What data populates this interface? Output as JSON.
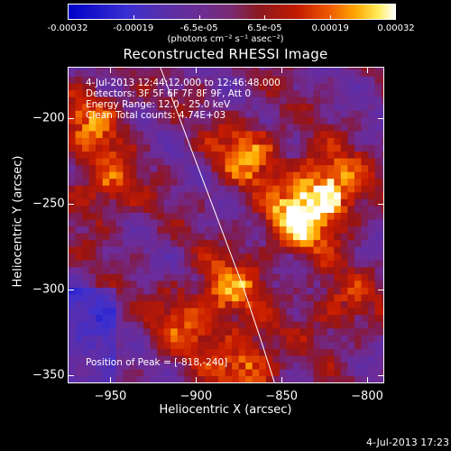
{
  "title": "Reconstructed RHESSI Image",
  "colorbar": {
    "ticks": [
      "-0.00032",
      "-0.00019",
      "-6.5e-05",
      "6.5e-05",
      "0.00019",
      "0.00032"
    ],
    "units": "(photons cm⁻² s⁻¹ asec⁻²)",
    "range": [
      -0.00032,
      0.00032
    ]
  },
  "annotations": {
    "time": "4-Jul-2013 12:44:12.000 to 12:46:48.000",
    "detectors": "Detectors: 3F 5F 6F 7F 8F 9F, Att 0",
    "energy": "Energy Range: 12.0 - 25.0 keV",
    "clean": "Clean     Total counts: 4.74E+03",
    "peak": "Position of Peak = [-818,-240]"
  },
  "footer": {
    "timestamp": "4-Jul-2013 17:23"
  },
  "chart_data": {
    "type": "heatmap",
    "title": "Reconstructed RHESSI Image",
    "xlabel": "Heliocentric X (arcsec)",
    "ylabel": "Heliocentric Y (arcsec)",
    "xlim": [
      -975,
      -790
    ],
    "ylim": [
      -355,
      -170
    ],
    "xticks": [
      -950,
      -900,
      -850,
      -800
    ],
    "yticks": [
      -200,
      -250,
      -300,
      -350
    ],
    "xtick_labels": [
      "−950",
      "−900",
      "−850",
      "−800"
    ],
    "ytick_labels": [
      "−200",
      "−250",
      "−300",
      "−350"
    ],
    "colormap": "blue-purple-red-yellow-white",
    "peak": [
      -818,
      -240
    ],
    "limb_line": [
      [
        -921,
        -170
      ],
      [
        -887,
        -260
      ],
      [
        -872,
        -300
      ],
      [
        -862,
        -330
      ],
      [
        -854,
        -355
      ]
    ],
    "bright_regions": [
      {
        "x": -822,
        "y": -240,
        "intensity": 0.00032
      },
      {
        "x": -840,
        "y": -260,
        "intensity": 0.00028
      },
      {
        "x": -870,
        "y": -220,
        "intensity": 0.00022
      },
      {
        "x": -960,
        "y": -200,
        "intensity": 0.0002
      },
      {
        "x": -955,
        "y": -240,
        "intensity": 0.00018
      },
      {
        "x": -880,
        "y": -300,
        "intensity": 0.0002
      },
      {
        "x": -870,
        "y": -345,
        "intensity": 0.00022
      },
      {
        "x": -905,
        "y": -320,
        "intensity": 0.00016
      },
      {
        "x": -815,
        "y": -310,
        "intensity": 0.00015
      }
    ]
  }
}
